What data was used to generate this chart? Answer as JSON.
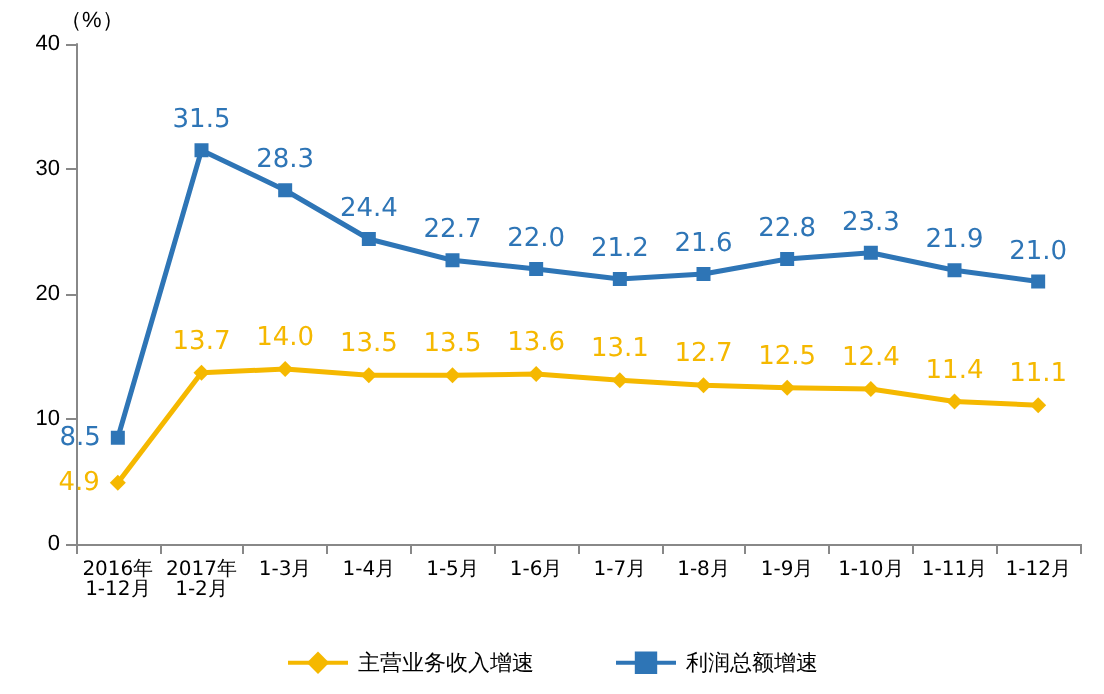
{
  "chart_data": {
    "type": "line",
    "ylabel": "（%）",
    "categories": [
      "2016年\n1-12月",
      "2017年\n1-2月",
      "1-3月",
      "1-4月",
      "1-5月",
      "1-6月",
      "1-7月",
      "1-8月",
      "1-9月",
      "1-10月",
      "1-11月",
      "1-12月"
    ],
    "series": [
      {
        "name": "主营业务收入增速",
        "color": "#f5b800",
        "marker": "diamond",
        "values": [
          4.9,
          13.7,
          14.0,
          13.5,
          13.5,
          13.6,
          13.1,
          12.7,
          12.5,
          12.4,
          11.4,
          11.1
        ],
        "value_labels": [
          "4.9",
          "13.7",
          "14.0",
          "13.5",
          "13.5",
          "13.6",
          "13.1",
          "12.7",
          "12.5",
          "12.4",
          "11.4",
          "11.1"
        ]
      },
      {
        "name": "利润总额增速",
        "color": "#2e75b6",
        "marker": "square",
        "values": [
          8.5,
          31.5,
          28.3,
          24.4,
          22.7,
          22.0,
          21.2,
          21.6,
          22.8,
          23.3,
          21.9,
          21.0
        ],
        "value_labels": [
          "8.5",
          "31.5",
          "28.3",
          "24.4",
          "22.7",
          "22.0",
          "21.2",
          "21.6",
          "22.8",
          "23.3",
          "21.9",
          "21.0"
        ]
      }
    ],
    "ylim": [
      0,
      40
    ],
    "yticks": [
      0,
      10,
      20,
      30,
      40
    ],
    "grid": false,
    "legend": "bottom",
    "line_style": "solid"
  }
}
